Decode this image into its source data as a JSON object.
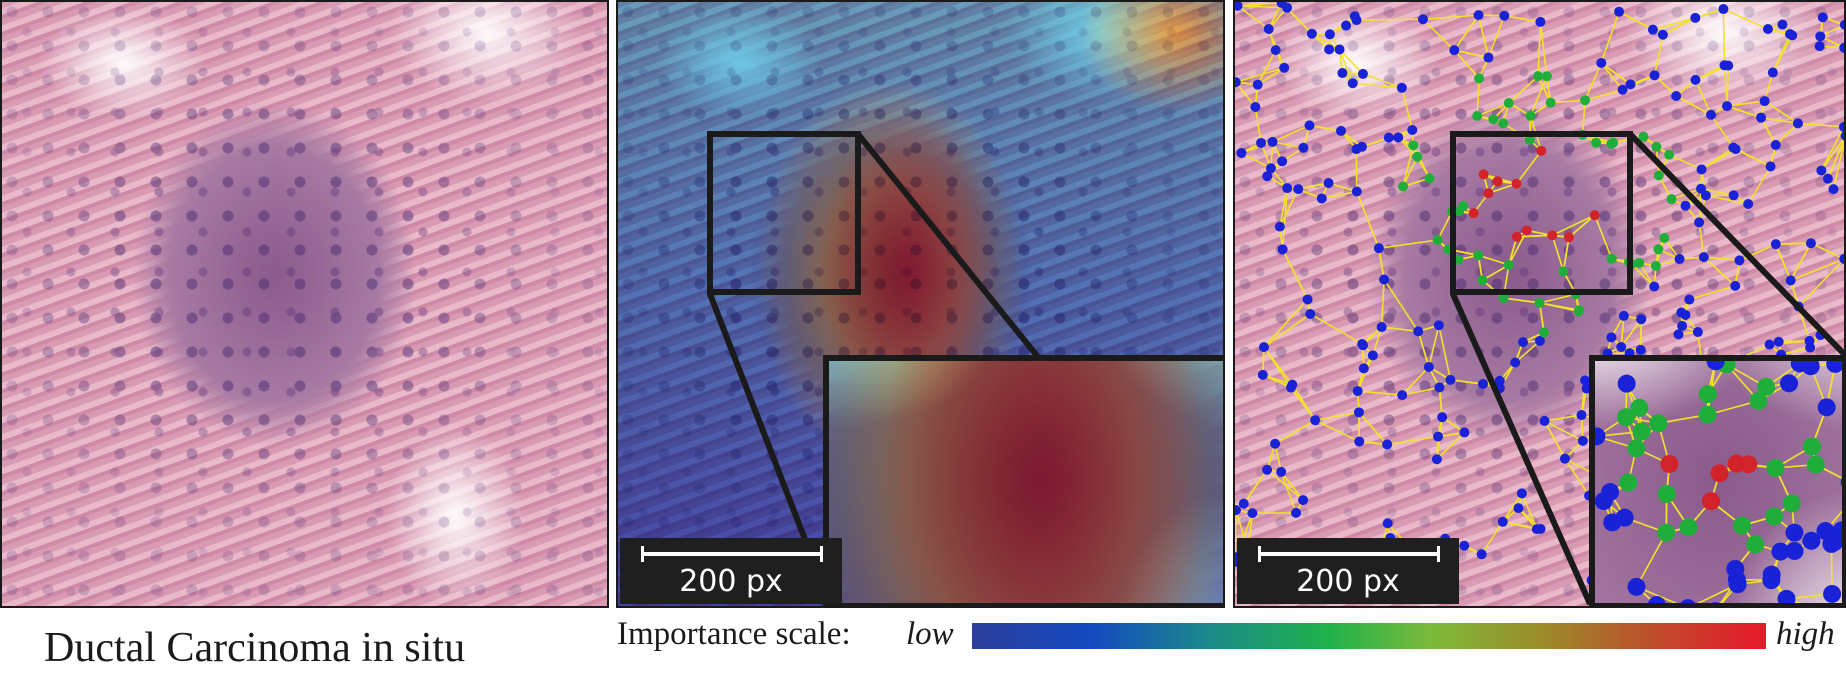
{
  "panels": {
    "scalebar_label": "200 px"
  },
  "caption": "Ductal Carcinoma in situ",
  "legend": {
    "label": "Importance scale:",
    "low": "low",
    "high": "high",
    "gradient_colors": [
      "#2c3f9c",
      "#1449c0",
      "#1b8a8a",
      "#20b24a",
      "#7dba3a",
      "#9c8a2a",
      "#c4442c",
      "#e8182a"
    ]
  },
  "colors": {
    "node_low": "#1a22d8",
    "node_mid": "#1fae3a",
    "node_high": "#d2222a",
    "edge": "#f2e22a",
    "frame": "#1a1a1a"
  }
}
